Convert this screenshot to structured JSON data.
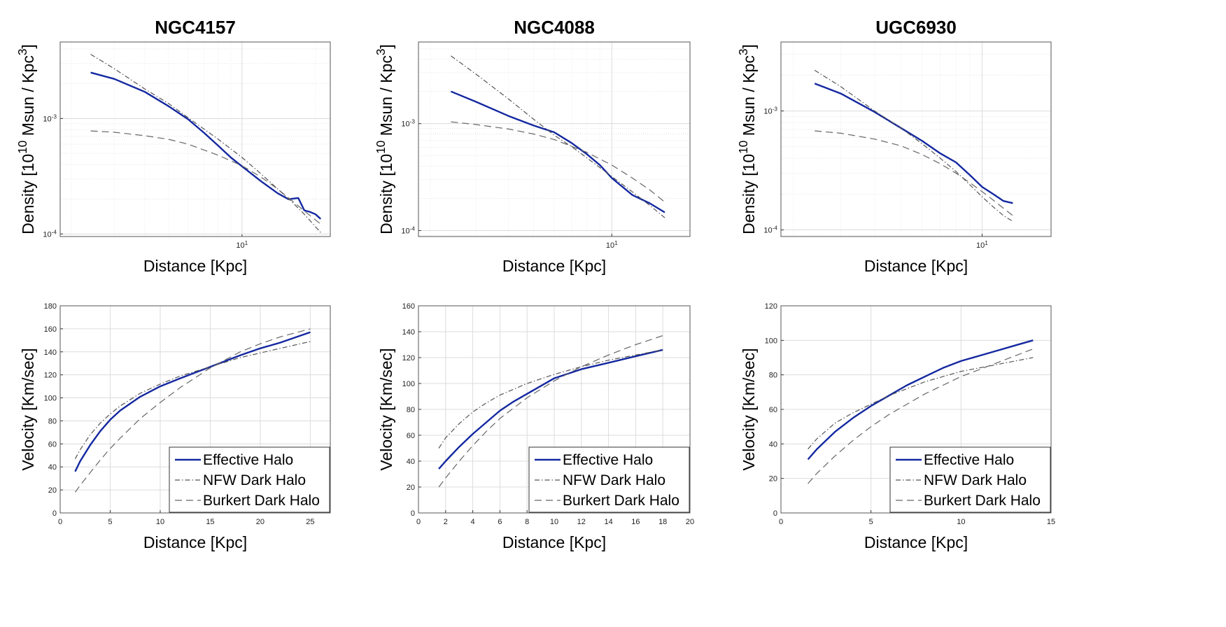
{
  "legend_labels": [
    "Effective Halo",
    "NFW Dark Halo",
    "Burkert Dark Halo"
  ],
  "series_styles": {
    "effective": {
      "color": "#1428a0",
      "dash": "none"
    },
    "nfw": {
      "color": "#555555",
      "dash": "7,3,1.5,3"
    },
    "burkert": {
      "color": "#666666",
      "dash": "10,6"
    }
  },
  "chart_data": [
    {
      "id": "ngc4157-density",
      "type": "line",
      "title": "NGC4157",
      "xlabel": "Distance  [Kpc]",
      "ylabel": "Density  [10^10  Msun / Kpc^3]",
      "xscale": "log",
      "yscale": "log",
      "xlim": [
        1.8,
        23
      ],
      "ylim": [
        9.5e-05,
        0.0046
      ],
      "xticks": [
        {
          "v": 10,
          "label": "10^1"
        }
      ],
      "yticks": [
        {
          "v": 0.0001,
          "label": "10^-4"
        },
        {
          "v": 0.001,
          "label": "10^-3"
        }
      ],
      "series": [
        {
          "name": "Effective Halo",
          "style": "effective",
          "x": [
            2.4,
            3,
            4,
            5,
            6,
            7,
            8,
            9,
            10,
            12,
            14,
            15.5,
            17,
            18,
            19,
            20,
            21
          ],
          "y": [
            0.0025,
            0.0022,
            0.0017,
            0.00128,
            0.00099,
            0.00075,
            0.00058,
            0.00046,
            0.000385,
            0.000285,
            0.000225,
            0.0002,
            0.000205,
            0.00016,
            0.000155,
            0.000148,
            0.000135
          ]
        },
        {
          "name": "NFW Dark Halo",
          "style": "nfw",
          "x": [
            2.4,
            3,
            4,
            5,
            6,
            8,
            10,
            12,
            14,
            16,
            18,
            21
          ],
          "y": [
            0.0036,
            0.0027,
            0.0018,
            0.00135,
            0.00102,
            0.00066,
            0.00046,
            0.00033,
            0.000245,
            0.00019,
            0.000148,
            0.000103
          ]
        },
        {
          "name": "Burkert Dark Halo",
          "style": "burkert",
          "x": [
            2.4,
            3,
            4,
            5,
            6,
            8,
            10,
            12,
            14,
            16,
            18,
            21
          ],
          "y": [
            0.00078,
            0.00076,
            0.00071,
            0.00066,
            0.0006,
            0.00048,
            0.00039,
            0.00031,
            0.000245,
            0.000195,
            0.000158,
            0.000122
          ]
        }
      ]
    },
    {
      "id": "ngc4088-density",
      "type": "line",
      "title": "NGC4088",
      "xlabel": "Distance  [Kpc]",
      "ylabel": "Density  [10^10  Msun / Kpc^3]",
      "xscale": "log",
      "yscale": "log",
      "xlim": [
        1.8,
        20
      ],
      "ylim": [
        8.8e-05,
        0.0058
      ],
      "xticks": [
        {
          "v": 10,
          "label": "10^1"
        }
      ],
      "yticks": [
        {
          "v": 0.0001,
          "label": "10^-4"
        },
        {
          "v": 0.001,
          "label": "10^-3"
        }
      ],
      "series": [
        {
          "name": "Effective Halo",
          "style": "effective",
          "x": [
            2.4,
            3,
            4,
            5,
            6,
            7,
            8,
            9,
            10,
            12,
            14,
            16
          ],
          "y": [
            0.002,
            0.0016,
            0.00118,
            0.00096,
            0.00083,
            0.00066,
            0.00052,
            0.00041,
            0.00031,
            0.000215,
            0.00018,
            0.000148
          ]
        },
        {
          "name": "NFW Dark Halo",
          "style": "nfw",
          "x": [
            2.4,
            3,
            4,
            5,
            6,
            7,
            8,
            10,
            12,
            14,
            16
          ],
          "y": [
            0.0043,
            0.0029,
            0.0017,
            0.0011,
            0.00078,
            0.00061,
            0.00048,
            0.00032,
            0.00023,
            0.000172,
            0.000132
          ]
        },
        {
          "name": "Burkert Dark Halo",
          "style": "burkert",
          "x": [
            2.4,
            3,
            4,
            5,
            6,
            8,
            10,
            12,
            14,
            16
          ],
          "y": [
            0.00104,
            0.00098,
            0.00089,
            0.0008,
            0.00071,
            0.00054,
            0.00041,
            0.00031,
            0.00024,
            0.000185
          ]
        }
      ]
    },
    {
      "id": "ugc6930-density",
      "type": "line",
      "title": "UGC6930",
      "xlabel": "Distance  [Kpc]",
      "ylabel": "Density  [10^10  Msun / Kpc^3]",
      "xscale": "log",
      "yscale": "log",
      "xlim": [
        1.8,
        18
      ],
      "ylim": [
        8.8e-05,
        0.0038
      ],
      "xticks": [
        {
          "v": 10,
          "label": "10^1"
        }
      ],
      "yticks": [
        {
          "v": 0.0001,
          "label": "10^-4"
        },
        {
          "v": 0.001,
          "label": "10^-3"
        }
      ],
      "series": [
        {
          "name": "Effective Halo",
          "style": "effective",
          "x": [
            2.4,
            3,
            4,
            5,
            6,
            7,
            8,
            9,
            10,
            11,
            12,
            13
          ],
          "y": [
            0.0017,
            0.0014,
            0.00098,
            0.00072,
            0.00056,
            0.00044,
            0.00037,
            0.00029,
            0.00023,
            0.0002,
            0.000175,
            0.000168
          ]
        },
        {
          "name": "NFW Dark Halo",
          "style": "nfw",
          "x": [
            2.4,
            3,
            4,
            5,
            6,
            7,
            8,
            9,
            10,
            11,
            12,
            13
          ],
          "y": [
            0.0022,
            0.0016,
            0.001,
            0.00072,
            0.00053,
            0.0004,
            0.00031,
            0.00024,
            0.00019,
            0.000156,
            0.000132,
            0.000118
          ]
        },
        {
          "name": "Burkert Dark Halo",
          "style": "burkert",
          "x": [
            2.4,
            3,
            4,
            5,
            6,
            7,
            8,
            9,
            10,
            11,
            12,
            13
          ],
          "y": [
            0.00068,
            0.00065,
            0.00058,
            0.00051,
            0.00043,
            0.00036,
            0.0003,
            0.00025,
            0.00021,
            0.000178,
            0.000152,
            0.000132
          ]
        }
      ]
    },
    {
      "id": "ngc4157-velocity",
      "type": "line",
      "title": "",
      "xlabel": "Distance  [Kpc]",
      "ylabel": "Velocity  [Km/sec]",
      "xscale": "linear",
      "yscale": "linear",
      "xlim": [
        0,
        27
      ],
      "ylim": [
        0,
        180
      ],
      "xticks": [
        {
          "v": 0,
          "label": "0"
        },
        {
          "v": 5,
          "label": "5"
        },
        {
          "v": 10,
          "label": "10"
        },
        {
          "v": 15,
          "label": "15"
        },
        {
          "v": 20,
          "label": "20"
        },
        {
          "v": 25,
          "label": "25"
        }
      ],
      "yticks": [
        {
          "v": 0,
          "label": "0"
        },
        {
          "v": 20,
          "label": "20"
        },
        {
          "v": 40,
          "label": "40"
        },
        {
          "v": 60,
          "label": "60"
        },
        {
          "v": 80,
          "label": "80"
        },
        {
          "v": 100,
          "label": "100"
        },
        {
          "v": 120,
          "label": "120"
        },
        {
          "v": 140,
          "label": "140"
        },
        {
          "v": 160,
          "label": "160"
        },
        {
          "v": 180,
          "label": "180"
        }
      ],
      "series": [
        {
          "name": "Effective Halo",
          "style": "effective",
          "x": [
            1.5,
            2,
            3,
            4,
            5,
            6,
            8,
            10,
            12,
            15,
            18,
            20,
            22,
            25
          ],
          "y": [
            36,
            45,
            59,
            71,
            81,
            89,
            101,
            110,
            117,
            127,
            137,
            143,
            148,
            157
          ]
        },
        {
          "name": "NFW Dark Halo",
          "style": "nfw",
          "x": [
            1.5,
            2,
            3,
            4,
            5,
            6,
            8,
            10,
            12,
            15,
            18,
            20,
            22,
            25
          ],
          "y": [
            47,
            55,
            68,
            78,
            86,
            93,
            104,
            112,
            119,
            127,
            135,
            139,
            143,
            149
          ]
        },
        {
          "name": "Burkert Dark Halo",
          "style": "burkert",
          "x": [
            1.5,
            2,
            3,
            4,
            5,
            6,
            8,
            10,
            12,
            15,
            18,
            20,
            22,
            25
          ],
          "y": [
            18,
            24,
            35,
            46,
            56,
            65,
            82,
            96,
            109,
            126,
            140,
            147,
            153,
            160
          ]
        }
      ]
    },
    {
      "id": "ngc4088-velocity",
      "type": "line",
      "title": "",
      "xlabel": "Distance  [Kpc]",
      "ylabel": "Velocity  [Km/sec]",
      "xscale": "linear",
      "yscale": "linear",
      "xlim": [
        0,
        20
      ],
      "ylim": [
        0,
        160
      ],
      "xticks": [
        {
          "v": 0,
          "label": "0"
        },
        {
          "v": 2,
          "label": "2"
        },
        {
          "v": 4,
          "label": "4"
        },
        {
          "v": 6,
          "label": "6"
        },
        {
          "v": 8,
          "label": "8"
        },
        {
          "v": 10,
          "label": "10"
        },
        {
          "v": 12,
          "label": "12"
        },
        {
          "v": 14,
          "label": "14"
        },
        {
          "v": 16,
          "label": "16"
        },
        {
          "v": 18,
          "label": "18"
        },
        {
          "v": 20,
          "label": "20"
        }
      ],
      "yticks": [
        {
          "v": 0,
          "label": "0"
        },
        {
          "v": 20,
          "label": "20"
        },
        {
          "v": 40,
          "label": "40"
        },
        {
          "v": 60,
          "label": "60"
        },
        {
          "v": 80,
          "label": "80"
        },
        {
          "v": 100,
          "label": "100"
        },
        {
          "v": 120,
          "label": "120"
        },
        {
          "v": 140,
          "label": "140"
        },
        {
          "v": 160,
          "label": "160"
        }
      ],
      "series": [
        {
          "name": "Effective Halo",
          "style": "effective",
          "x": [
            1.5,
            2,
            3,
            4,
            5,
            6,
            7,
            8,
            9,
            10,
            12,
            14,
            16,
            18
          ],
          "y": [
            34,
            40,
            51,
            61,
            70,
            79,
            86,
            92,
            98,
            104,
            111,
            116,
            121,
            126
          ]
        },
        {
          "name": "NFW Dark Halo",
          "style": "nfw",
          "x": [
            1.5,
            2,
            3,
            4,
            5,
            6,
            8,
            10,
            12,
            14,
            16,
            18
          ],
          "y": [
            50,
            58,
            69,
            78,
            85,
            91,
            100,
            107,
            113,
            118,
            122,
            126
          ]
        },
        {
          "name": "Burkert Dark Halo",
          "style": "burkert",
          "x": [
            1.5,
            2,
            3,
            4,
            5,
            6,
            8,
            10,
            12,
            14,
            16,
            18
          ],
          "y": [
            20,
            27,
            40,
            52,
            63,
            73,
            89,
            102,
            113,
            122,
            130,
            137
          ]
        }
      ]
    },
    {
      "id": "ugc6930-velocity",
      "type": "line",
      "title": "",
      "xlabel": "Distance  [Kpc]",
      "ylabel": "Velocity  [Km/sec]",
      "xscale": "linear",
      "yscale": "linear",
      "xlim": [
        0,
        15
      ],
      "ylim": [
        0,
        120
      ],
      "xticks": [
        {
          "v": 0,
          "label": "0"
        },
        {
          "v": 5,
          "label": "5"
        },
        {
          "v": 10,
          "label": "10"
        },
        {
          "v": 15,
          "label": "15"
        }
      ],
      "yticks": [
        {
          "v": 0,
          "label": "0"
        },
        {
          "v": 20,
          "label": "20"
        },
        {
          "v": 40,
          "label": "40"
        },
        {
          "v": 60,
          "label": "60"
        },
        {
          "v": 80,
          "label": "80"
        },
        {
          "v": 100,
          "label": "100"
        },
        {
          "v": 120,
          "label": "120"
        }
      ],
      "series": [
        {
          "name": "Effective Halo",
          "style": "effective",
          "x": [
            1.5,
            2,
            3,
            4,
            5,
            6,
            7,
            8,
            9,
            10,
            11,
            12,
            13,
            14
          ],
          "y": [
            31,
            37,
            47,
            55,
            62,
            68,
            74,
            79,
            84,
            88,
            91,
            94,
            97,
            100
          ]
        },
        {
          "name": "NFW Dark Halo",
          "style": "nfw",
          "x": [
            1.5,
            2,
            3,
            4,
            5,
            6,
            7,
            8,
            9,
            10,
            11,
            12,
            13,
            14
          ],
          "y": [
            37,
            43,
            52,
            58,
            63,
            68,
            72,
            76,
            79,
            82,
            84,
            86,
            88,
            90
          ]
        },
        {
          "name": "Burkert Dark Halo",
          "style": "burkert",
          "x": [
            1.5,
            2,
            3,
            4,
            5,
            6,
            7,
            8,
            9,
            10,
            11,
            12,
            13,
            14
          ],
          "y": [
            17,
            23,
            33,
            42,
            50,
            57,
            63,
            69,
            74,
            79,
            83,
            87,
            91,
            95
          ]
        }
      ]
    }
  ]
}
